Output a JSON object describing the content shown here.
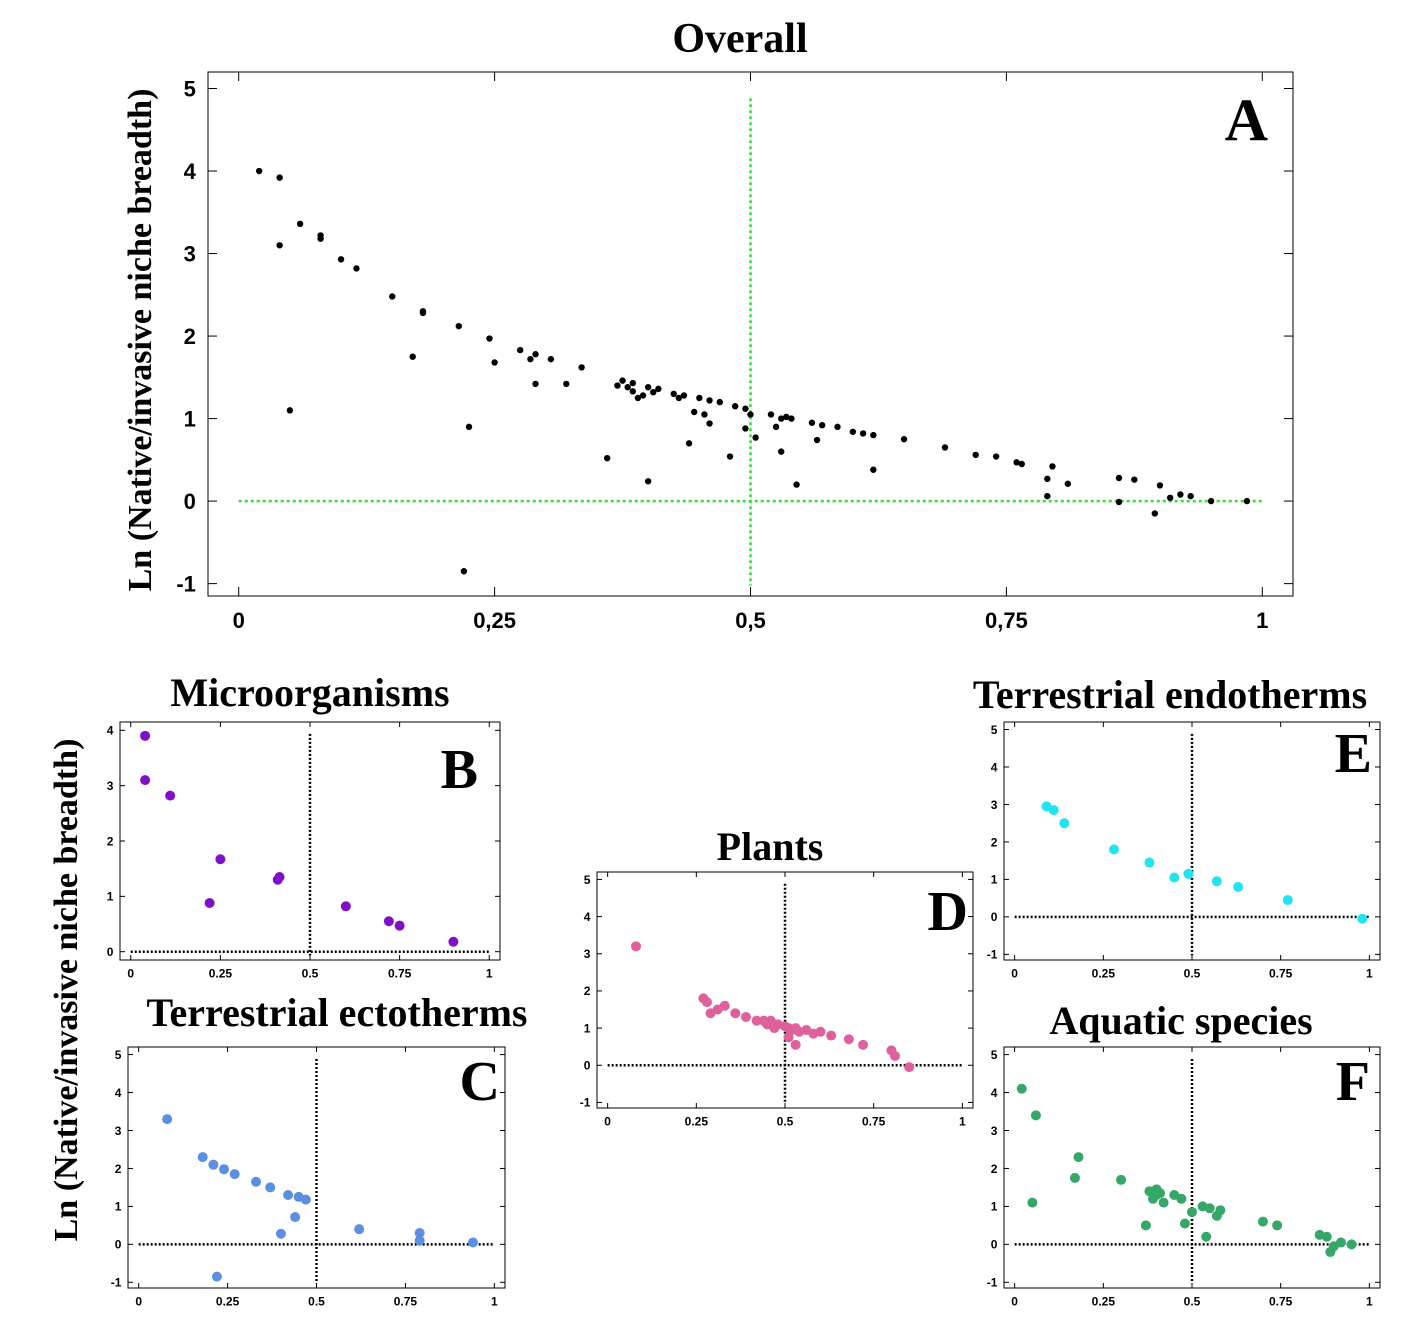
{
  "ylabel": "Ln (Native/invasive niche breadth)",
  "chart_data": [
    {
      "id": "A",
      "type": "scatter",
      "title": "Overall",
      "letter": "A",
      "color": "#000000",
      "ref_color": "#33dd33",
      "xlim": [
        -0.03,
        1.03
      ],
      "ylim": [
        -1.15,
        5.2
      ],
      "xticks": [
        0,
        0.25,
        0.5,
        0.75,
        1
      ],
      "xtick_labels": [
        "0",
        "0,25",
        "0,5",
        "0,75",
        "1"
      ],
      "yticks": [
        -1,
        0,
        1,
        2,
        3,
        4,
        5
      ],
      "ytick_labels": [
        "-1",
        "0",
        "1",
        "2",
        "3",
        "4",
        "5"
      ],
      "x": [
        0.02,
        0.04,
        0.04,
        0.05,
        0.06,
        0.08,
        0.08,
        0.1,
        0.115,
        0.15,
        0.17,
        0.18,
        0.18,
        0.215,
        0.22,
        0.225,
        0.245,
        0.25,
        0.275,
        0.285,
        0.29,
        0.29,
        0.305,
        0.32,
        0.335,
        0.36,
        0.37,
        0.375,
        0.38,
        0.385,
        0.385,
        0.39,
        0.395,
        0.4,
        0.4,
        0.405,
        0.41,
        0.425,
        0.43,
        0.435,
        0.44,
        0.445,
        0.45,
        0.455,
        0.46,
        0.46,
        0.47,
        0.48,
        0.485,
        0.495,
        0.495,
        0.5,
        0.505,
        0.52,
        0.525,
        0.53,
        0.53,
        0.535,
        0.54,
        0.545,
        0.56,
        0.565,
        0.57,
        0.585,
        0.6,
        0.61,
        0.62,
        0.62,
        0.65,
        0.69,
        0.72,
        0.74,
        0.76,
        0.765,
        0.79,
        0.79,
        0.795,
        0.81,
        0.86,
        0.86,
        0.875,
        0.9,
        0.895,
        0.91,
        0.92,
        0.93,
        0.95,
        0.985
      ],
      "y": [
        4.0,
        3.92,
        3.1,
        1.1,
        3.36,
        3.18,
        3.22,
        2.93,
        2.82,
        2.48,
        1.75,
        2.28,
        2.3,
        2.12,
        -0.85,
        0.9,
        1.97,
        1.68,
        1.83,
        1.72,
        1.78,
        1.42,
        1.72,
        1.42,
        1.62,
        0.52,
        1.4,
        1.46,
        1.38,
        1.43,
        1.33,
        1.25,
        1.28,
        1.38,
        0.24,
        1.32,
        1.36,
        1.3,
        1.25,
        1.28,
        0.7,
        1.08,
        1.25,
        1.05,
        1.22,
        0.94,
        1.2,
        0.54,
        1.15,
        1.12,
        0.88,
        1.05,
        0.77,
        1.05,
        0.9,
        1.0,
        0.6,
        1.02,
        1.0,
        0.2,
        0.95,
        0.74,
        0.92,
        0.9,
        0.84,
        0.82,
        0.8,
        0.38,
        0.75,
        0.65,
        0.56,
        0.54,
        0.47,
        0.45,
        0.06,
        0.27,
        0.42,
        0.21,
        -0.01,
        0.28,
        0.26,
        0.19,
        -0.15,
        0.04,
        0.08,
        0.06,
        0.0,
        0.0
      ]
    },
    {
      "id": "B",
      "type": "scatter",
      "title": "Microorganisms",
      "letter": "B",
      "color": "#8010c8",
      "ref_color": "#000000",
      "xlim": [
        -0.03,
        1.03
      ],
      "ylim": [
        -0.15,
        4.15
      ],
      "xticks": [
        0,
        0.25,
        0.5,
        0.75,
        1
      ],
      "xtick_labels": [
        "0",
        "0.25",
        "0.5",
        "0.75",
        "1"
      ],
      "yticks": [
        0,
        1,
        2,
        3,
        4
      ],
      "ytick_labels": [
        "0",
        "1",
        "2",
        "3",
        "4"
      ],
      "x": [
        0.04,
        0.04,
        0.11,
        0.22,
        0.25,
        0.41,
        0.415,
        0.6,
        0.72,
        0.75,
        0.9
      ],
      "y": [
        3.9,
        3.1,
        2.82,
        0.88,
        1.67,
        1.3,
        1.35,
        0.82,
        0.55,
        0.47,
        0.18
      ]
    },
    {
      "id": "C",
      "type": "scatter",
      "title": "Terrestrial ectotherms",
      "letter": "C",
      "color": "#5b8fe0",
      "ref_color": "#000000",
      "xlim": [
        -0.03,
        1.03
      ],
      "ylim": [
        -1.15,
        5.2
      ],
      "xticks": [
        0,
        0.25,
        0.5,
        0.75,
        1
      ],
      "xtick_labels": [
        "0",
        "0.25",
        "0.5",
        "0.75",
        "1"
      ],
      "yticks": [
        -1,
        0,
        1,
        2,
        3,
        4,
        5
      ],
      "ytick_labels": [
        "-1",
        "0",
        "1",
        "2",
        "3",
        "4",
        "5"
      ],
      "x": [
        0.08,
        0.18,
        0.21,
        0.24,
        0.27,
        0.33,
        0.37,
        0.4,
        0.42,
        0.44,
        0.45,
        0.47,
        0.62,
        0.79,
        0.79,
        0.94,
        0.22
      ],
      "y": [
        3.3,
        2.3,
        2.1,
        1.98,
        1.85,
        1.65,
        1.5,
        0.28,
        1.3,
        0.72,
        1.25,
        1.18,
        0.4,
        0.3,
        0.1,
        0.05,
        -0.85
      ]
    },
    {
      "id": "D",
      "type": "scatter",
      "title": "Plants",
      "letter": "D",
      "color": "#e0609e",
      "ref_color": "#000000",
      "xlim": [
        -0.03,
        1.03
      ],
      "ylim": [
        -1.15,
        5.2
      ],
      "xticks": [
        0,
        0.25,
        0.5,
        0.75,
        1
      ],
      "xtick_labels": [
        "0",
        "0.25",
        "0.5",
        "0.75",
        "1"
      ],
      "yticks": [
        -1,
        0,
        1,
        2,
        3,
        4,
        5
      ],
      "ytick_labels": [
        "-1",
        "0",
        "1",
        "2",
        "3",
        "4",
        "5"
      ],
      "x": [
        0.08,
        0.27,
        0.28,
        0.29,
        0.31,
        0.33,
        0.36,
        0.39,
        0.42,
        0.44,
        0.45,
        0.46,
        0.47,
        0.48,
        0.5,
        0.51,
        0.52,
        0.53,
        0.54,
        0.56,
        0.58,
        0.6,
        0.63,
        0.68,
        0.72,
        0.8,
        0.81,
        0.85,
        0.53,
        0.51
      ],
      "y": [
        3.2,
        1.8,
        1.7,
        1.4,
        1.5,
        1.6,
        1.4,
        1.3,
        1.2,
        1.2,
        1.1,
        1.2,
        1.0,
        1.1,
        1.05,
        1.0,
        0.95,
        1.0,
        0.9,
        0.95,
        0.85,
        0.9,
        0.8,
        0.7,
        0.55,
        0.4,
        0.25,
        -0.05,
        0.55,
        0.75
      ]
    },
    {
      "id": "E",
      "type": "scatter",
      "title": "Terrestrial endotherms",
      "letter": "E",
      "color": "#22e4f0",
      "ref_color": "#000000",
      "xlim": [
        -0.03,
        1.03
      ],
      "ylim": [
        -1.15,
        5.2
      ],
      "xticks": [
        0,
        0.25,
        0.5,
        0.75,
        1
      ],
      "xtick_labels": [
        "0",
        "0.25",
        "0.5",
        "0.75",
        "1"
      ],
      "yticks": [
        -1,
        0,
        1,
        2,
        3,
        4,
        5
      ],
      "ytick_labels": [
        "-1",
        "0",
        "1",
        "2",
        "3",
        "4",
        "5"
      ],
      "x": [
        0.09,
        0.11,
        0.14,
        0.28,
        0.38,
        0.45,
        0.49,
        0.57,
        0.63,
        0.77,
        0.98
      ],
      "y": [
        2.95,
        2.85,
        2.5,
        1.8,
        1.45,
        1.05,
        1.15,
        0.95,
        0.8,
        0.45,
        -0.05
      ]
    },
    {
      "id": "F",
      "type": "scatter",
      "title": "Aquatic species",
      "letter": "F",
      "color": "#35a868",
      "ref_color": "#000000",
      "xlim": [
        -0.03,
        1.03
      ],
      "ylim": [
        -1.15,
        5.2
      ],
      "xticks": [
        0,
        0.25,
        0.5,
        0.75,
        1
      ],
      "xtick_labels": [
        "0",
        "0.25",
        "0.5",
        "0.75",
        "1"
      ],
      "yticks": [
        -1,
        0,
        1,
        2,
        3,
        4,
        5
      ],
      "ytick_labels": [
        "-1",
        "0",
        "1",
        "2",
        "3",
        "4",
        "5"
      ],
      "x": [
        0.02,
        0.06,
        0.05,
        0.17,
        0.18,
        0.3,
        0.37,
        0.38,
        0.39,
        0.4,
        0.4,
        0.41,
        0.42,
        0.45,
        0.47,
        0.48,
        0.5,
        0.53,
        0.54,
        0.55,
        0.57,
        0.58,
        0.7,
        0.74,
        0.86,
        0.88,
        0.89,
        0.9,
        0.92,
        0.95
      ],
      "y": [
        4.1,
        3.4,
        1.1,
        1.75,
        2.3,
        1.7,
        0.5,
        1.4,
        1.2,
        1.45,
        1.3,
        1.35,
        1.1,
        1.3,
        1.2,
        0.55,
        0.85,
        1.0,
        0.2,
        0.95,
        0.75,
        0.9,
        0.6,
        0.5,
        0.25,
        0.2,
        -0.2,
        -0.05,
        0.05,
        0.0
      ]
    }
  ]
}
